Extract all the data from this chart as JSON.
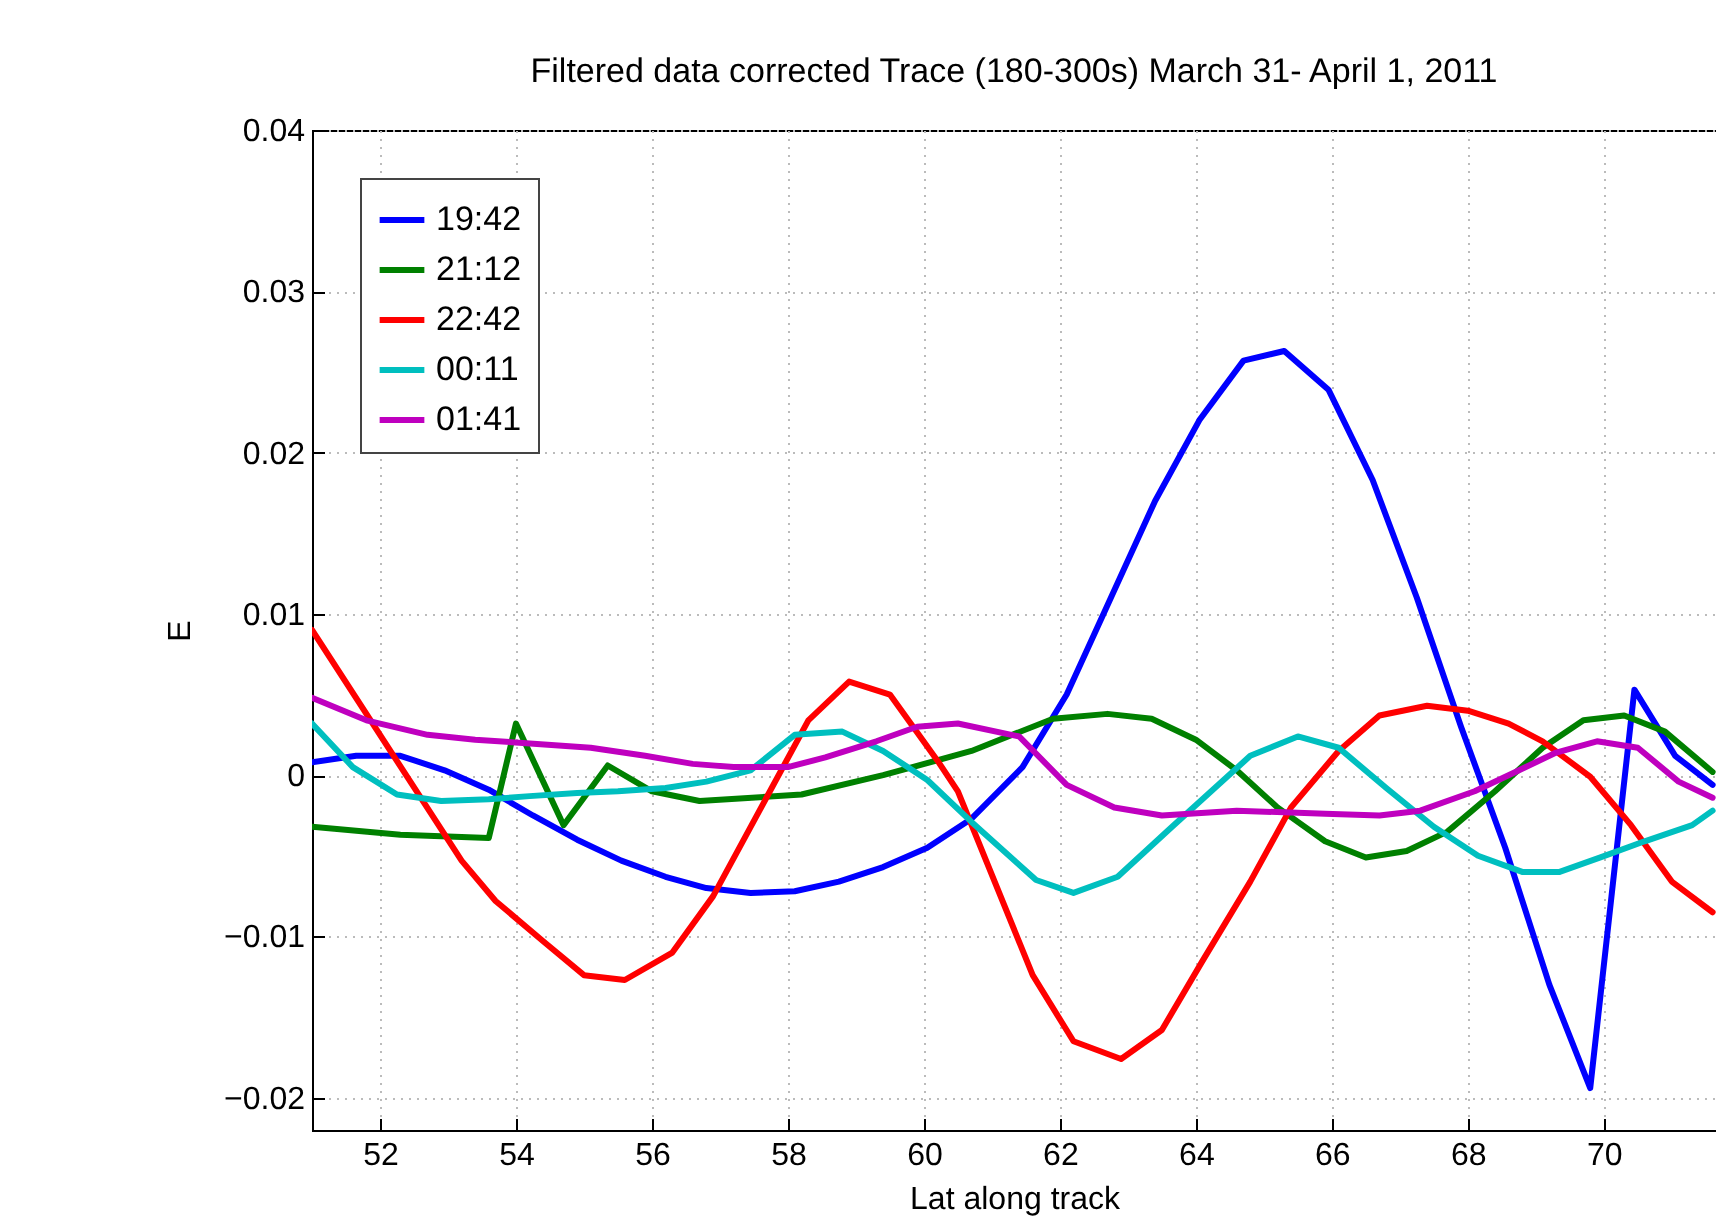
{
  "chart_data": {
    "type": "line",
    "title": "Filtered data corrected Trace (180-300s) March 31- April 1, 2011",
    "xlabel": "Lat along track",
    "ylabel": "E",
    "xlim": [
      51,
      71.65
    ],
    "xticks": [
      52,
      54,
      56,
      58,
      60,
      62,
      64,
      66,
      68,
      70
    ],
    "ylim": [
      -0.022,
      0.04
    ],
    "yticks": [
      -0.02,
      -0.01,
      0,
      0.01,
      0.02,
      0.03,
      0.04
    ],
    "grid": true,
    "legend": "top left",
    "marker": "none",
    "line_style": "solid",
    "series": [
      {
        "name": "19:42",
        "color": "#0000ff",
        "x": [
          51.0,
          51.65,
          52.3,
          52.95,
          53.6,
          54.25,
          54.9,
          55.55,
          56.2,
          56.8,
          57.45,
          58.1,
          58.75,
          59.4,
          60.05,
          60.7,
          61.45,
          62.1,
          62.75,
          63.4,
          64.05,
          64.7,
          65.3,
          65.95,
          66.6,
          67.25,
          67.9,
          68.55,
          69.2,
          69.8,
          70.45,
          71.05,
          71.6
        ],
        "values": [
          0.0008,
          0.0012,
          0.0012,
          0.0003,
          -0.0009,
          -0.0025,
          -0.004,
          -0.0053,
          -0.0063,
          -0.007,
          -0.0073,
          -0.0072,
          -0.0066,
          -0.0057,
          -0.0045,
          -0.0027,
          0.0005,
          0.005,
          0.011,
          0.017,
          0.022,
          0.0257,
          0.0263,
          0.0239,
          0.0183,
          0.011,
          0.003,
          -0.0045,
          -0.013,
          -0.0194,
          0.0053,
          0.0012,
          -0.0006
        ]
      },
      {
        "name": "21:12",
        "color": "#008000",
        "x": [
          51.0,
          52.3,
          53.6,
          54.0,
          54.7,
          55.35,
          56.0,
          56.7,
          58.2,
          59.4,
          60.7,
          61.9,
          62.7,
          63.35,
          64.0,
          64.6,
          65.2,
          65.9,
          66.5,
          67.1,
          67.7,
          68.4,
          69.1,
          69.7,
          70.3,
          70.9,
          71.6
        ],
        "values": [
          -0.0032,
          -0.0037,
          -0.0039,
          0.0032,
          -0.0031,
          0.0006,
          -0.001,
          -0.0016,
          -0.0012,
          0.0,
          0.0015,
          0.0035,
          0.0038,
          0.0035,
          0.0022,
          0.0003,
          -0.002,
          -0.0041,
          -0.0051,
          -0.0047,
          -0.0035,
          -0.001,
          0.0017,
          0.0034,
          0.0037,
          0.0027,
          0.0002
        ]
      },
      {
        "name": "22:42",
        "color": "#ff0000",
        "x": [
          51.0,
          53.2,
          53.7,
          54.4,
          55.0,
          55.6,
          56.3,
          56.9,
          58.3,
          58.9,
          59.5,
          60.2,
          60.5,
          61.6,
          62.2,
          62.9,
          63.5,
          64.1,
          64.8,
          65.4,
          66.1,
          66.7,
          67.4,
          68.0,
          68.6,
          69.1,
          69.8,
          70.4,
          71.0,
          71.6
        ],
        "values": [
          0.009,
          -0.0053,
          -0.0078,
          -0.0103,
          -0.0124,
          -0.0127,
          -0.011,
          -0.0075,
          0.0034,
          0.0058,
          0.005,
          0.0009,
          -0.001,
          -0.0124,
          -0.0165,
          -0.0176,
          -0.0158,
          -0.0115,
          -0.0066,
          -0.002,
          0.0015,
          0.0037,
          0.0043,
          0.004,
          0.0032,
          0.0021,
          -0.0001,
          -0.0031,
          -0.0066,
          -0.0085
        ]
      },
      {
        "name": "00:11",
        "color": "#00bfbf",
        "x": [
          51.0,
          51.6,
          52.25,
          52.9,
          53.6,
          54.2,
          54.9,
          55.5,
          56.2,
          56.8,
          57.45,
          58.1,
          58.8,
          59.4,
          60.05,
          60.7,
          61.65,
          62.2,
          62.85,
          63.65,
          64.8,
          65.5,
          66.1,
          66.8,
          67.5,
          68.15,
          68.8,
          69.35,
          69.95,
          70.6,
          71.3,
          71.6
        ],
        "values": [
          0.0032,
          0.0005,
          -0.0012,
          -0.0016,
          -0.0015,
          -0.0013,
          -0.0011,
          -0.001,
          -0.0008,
          -0.0004,
          0.0003,
          0.0025,
          0.0027,
          0.0015,
          -0.0003,
          -0.0029,
          -0.0065,
          -0.0073,
          -0.0063,
          -0.0032,
          0.0012,
          0.0024,
          0.0017,
          -0.0008,
          -0.0032,
          -0.005,
          -0.006,
          -0.006,
          -0.0051,
          -0.0041,
          -0.0031,
          -0.0022
        ]
      },
      {
        "name": "01:41",
        "color": "#bf00bf",
        "x": [
          51.0,
          51.8,
          52.7,
          53.4,
          54.1,
          55.1,
          55.9,
          56.6,
          57.2,
          58.0,
          58.55,
          59.3,
          59.9,
          60.5,
          61.4,
          62.1,
          62.8,
          63.5,
          64.6,
          65.9,
          66.7,
          67.3,
          68.1,
          68.7,
          69.3,
          69.9,
          70.5,
          71.1,
          71.6
        ],
        "values": [
          0.0048,
          0.0034,
          0.0025,
          0.0022,
          0.002,
          0.0017,
          0.0012,
          0.0007,
          0.0005,
          0.0005,
          0.0011,
          0.0021,
          0.003,
          0.0032,
          0.0024,
          -0.0006,
          -0.002,
          -0.0025,
          -0.0022,
          -0.0024,
          -0.0025,
          -0.0022,
          -0.001,
          0.0002,
          0.0014,
          0.0021,
          0.0017,
          -0.0004,
          -0.0014
        ]
      }
    ]
  }
}
